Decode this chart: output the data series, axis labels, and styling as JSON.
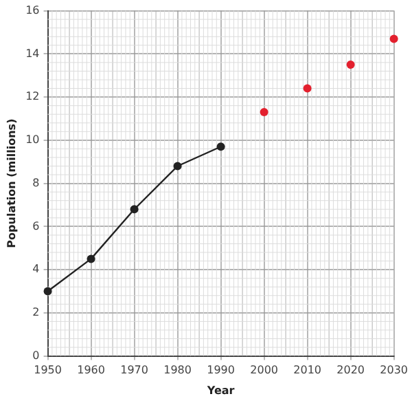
{
  "chart_data": {
    "type": "line",
    "xlabel": "Year",
    "ylabel": "Population (millions)",
    "series": [
      {
        "color": "#222222",
        "x": [
          1950,
          1960,
          1970,
          1980,
          1990
        ],
        "values": [
          3.0,
          4.5,
          6.8,
          8.8,
          9.7
        ]
      },
      {
        "type": "scatter",
        "color": "#e3202e",
        "x": [
          2000,
          2010,
          2020,
          2030
        ],
        "values": [
          11.3,
          12.4,
          13.5,
          14.7
        ]
      }
    ],
    "xlim": [
      1950,
      2030
    ],
    "xticks": [
      1950,
      1960,
      1970,
      1980,
      1990,
      2000,
      2010,
      2020,
      2030
    ],
    "ylim": [
      0,
      16
    ],
    "yticks": [
      0,
      2,
      4,
      6,
      8,
      10,
      12,
      14,
      16
    ],
    "grid": true,
    "marker": "circle",
    "legend": false
  }
}
